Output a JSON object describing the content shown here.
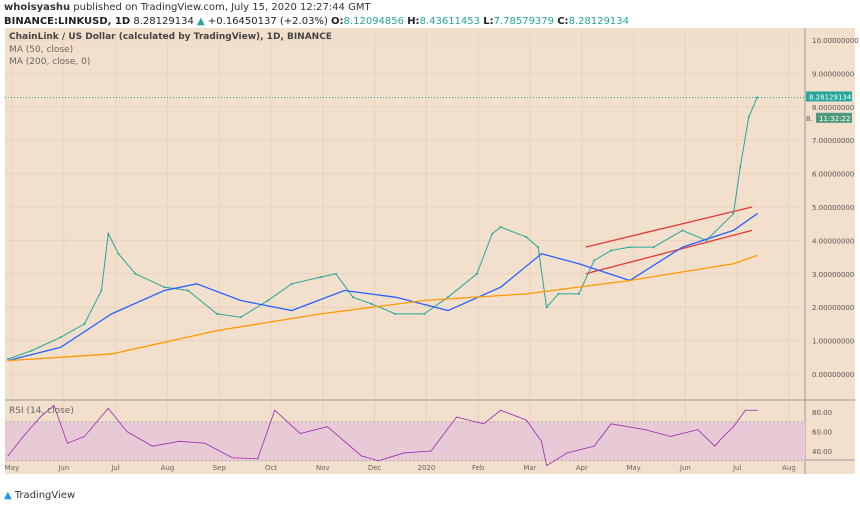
{
  "header": {
    "author": "whoisyashu",
    "published": "published on TradingView.com, July 15, 2020 12:27:44 GMT",
    "symbol": "BINANCE:LINKUSD, 1D",
    "last": "8.28129134",
    "change": "+0.16450137 (+2.03%)",
    "o_label": "O:",
    "o": "8.12094856",
    "h_label": "H:",
    "h": "8.43611453",
    "l_label": "L:",
    "l": "7.78579379",
    "c_label": "C:",
    "c": "8.28129134"
  },
  "legend": {
    "title": "ChainLink / US Dollar (calculated by TradingView), 1D, BINANCE",
    "ma50": "MA (50, close)",
    "ma200": "MA (200, close, 0)",
    "rsi": "RSI (14, close)"
  },
  "price_label": "8.28129134",
  "countdown": "11:32:22",
  "price_label_partial": "8.",
  "logo": "TradingView",
  "colors": {
    "background": "#f2e0cc",
    "price_line": "#26a69a",
    "ma50": "#2962ff",
    "ma200": "#ff9800",
    "channel": "#e53935",
    "rsi": "#9c27b0",
    "rsi_band": "#e8cad6"
  },
  "chart_data": [
    {
      "type": "line",
      "title": "ChainLink / US Dollar",
      "ylim": [
        0,
        10
      ],
      "yticks": [
        "0.00000000",
        "1.00000000",
        "2.00000000",
        "3.00000000",
        "4.00000000",
        "5.00000000",
        "6.00000000",
        "7.00000000",
        "8.00000000",
        "9.00000000",
        "10.00000000"
      ],
      "xticks": [
        "May",
        "Jun",
        "Jul",
        "Aug",
        "Sep",
        "Oct",
        "Nov",
        "Dec",
        "2020",
        "Feb",
        "Mar",
        "Apr",
        "May",
        "Jun",
        "Jul",
        "Aug"
      ],
      "series": [
        {
          "name": "LINKUSD",
          "x": [
            "2019-05-01",
            "2019-05-15",
            "2019-06-01",
            "2019-06-15",
            "2019-06-25",
            "2019-06-29",
            "2019-07-05",
            "2019-07-15",
            "2019-08-01",
            "2019-08-15",
            "2019-09-01",
            "2019-09-15",
            "2019-10-01",
            "2019-10-15",
            "2019-11-01",
            "2019-11-10",
            "2019-11-20",
            "2019-12-01",
            "2019-12-15",
            "2020-01-01",
            "2020-01-15",
            "2020-02-01",
            "2020-02-10",
            "2020-02-15",
            "2020-03-01",
            "2020-03-08",
            "2020-03-13",
            "2020-03-20",
            "2020-04-01",
            "2020-04-10",
            "2020-04-20",
            "2020-05-01",
            "2020-05-15",
            "2020-06-01",
            "2020-06-15",
            "2020-07-01",
            "2020-07-05",
            "2020-07-10",
            "2020-07-15"
          ],
          "y": [
            0.45,
            0.7,
            1.1,
            1.5,
            2.5,
            4.2,
            3.6,
            3.0,
            2.6,
            2.5,
            1.8,
            1.7,
            2.2,
            2.7,
            2.9,
            3.0,
            2.3,
            2.1,
            1.8,
            1.8,
            2.3,
            3.0,
            4.2,
            4.4,
            4.1,
            3.8,
            2.0,
            2.4,
            2.4,
            3.4,
            3.7,
            3.8,
            3.8,
            4.3,
            4.0,
            4.8,
            6.2,
            7.7,
            8.28
          ]
        },
        {
          "name": "MA (50, close)",
          "x": [
            "2019-05-01",
            "2019-06-01",
            "2019-07-01",
            "2019-08-01",
            "2019-08-20",
            "2019-09-15",
            "2019-10-15",
            "2019-11-15",
            "2019-12-15",
            "2020-01-15",
            "2020-02-15",
            "2020-03-10",
            "2020-04-01",
            "2020-05-01",
            "2020-06-01",
            "2020-07-01",
            "2020-07-15"
          ],
          "y": [
            0.4,
            0.8,
            1.8,
            2.5,
            2.7,
            2.2,
            1.9,
            2.5,
            2.3,
            1.9,
            2.6,
            3.6,
            3.3,
            2.8,
            3.8,
            4.3,
            4.8
          ]
        },
        {
          "name": "MA (200, close, 0)",
          "x": [
            "2019-05-01",
            "2019-07-01",
            "2019-09-01",
            "2019-11-01",
            "2020-01-01",
            "2020-03-01",
            "2020-05-01",
            "2020-07-01",
            "2020-07-15"
          ],
          "y": [
            0.4,
            0.6,
            1.3,
            1.8,
            2.2,
            2.4,
            2.8,
            3.3,
            3.55
          ]
        }
      ],
      "channel": [
        {
          "x": [
            "2020-04-05",
            "2020-07-12"
          ],
          "y": [
            3.8,
            5.0
          ]
        },
        {
          "x": [
            "2020-04-05",
            "2020-07-12"
          ],
          "y": [
            3.0,
            4.3
          ]
        }
      ]
    },
    {
      "type": "line",
      "title": "RSI (14, close)",
      "ylim": [
        20,
        90
      ],
      "yticks": [
        "40.00",
        "60.00",
        "80.00"
      ],
      "band": [
        30,
        70
      ],
      "x": [
        "2019-05-01",
        "2019-05-10",
        "2019-05-20",
        "2019-05-28",
        "2019-06-05",
        "2019-06-15",
        "2019-06-29",
        "2019-07-10",
        "2019-07-25",
        "2019-08-10",
        "2019-08-25",
        "2019-09-10",
        "2019-09-25",
        "2019-10-05",
        "2019-10-20",
        "2019-11-05",
        "2019-11-25",
        "2019-12-05",
        "2019-12-20",
        "2020-01-05",
        "2020-01-20",
        "2020-02-05",
        "2020-02-15",
        "2020-03-01",
        "2020-03-10",
        "2020-03-13",
        "2020-03-25",
        "2020-04-10",
        "2020-04-20",
        "2020-05-10",
        "2020-05-25",
        "2020-06-10",
        "2020-06-20",
        "2020-06-25",
        "2020-07-01",
        "2020-07-08",
        "2020-07-15"
      ],
      "y": [
        35,
        55,
        75,
        87,
        48,
        55,
        84,
        60,
        45,
        50,
        48,
        33,
        32,
        82,
        58,
        65,
        35,
        30,
        38,
        40,
        75,
        68,
        82,
        72,
        50,
        25,
        38,
        45,
        68,
        62,
        55,
        62,
        45,
        55,
        65,
        82,
        82
      ]
    }
  ]
}
